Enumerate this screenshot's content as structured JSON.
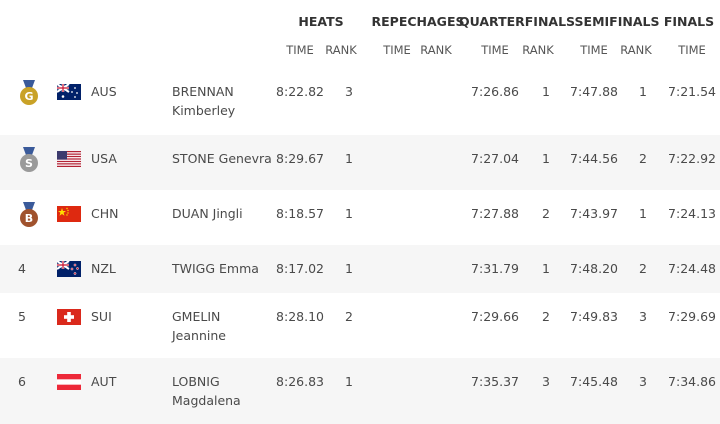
{
  "header": {
    "groups": [
      "HEATS",
      "REPECHAGES",
      "QUARTERFINALS",
      "SEMIFINALS",
      "FINALS"
    ],
    "subheaders": [
      "TIME",
      "RANK",
      "TIME",
      "RANK",
      "TIME",
      "RANK",
      "TIME",
      "RANK",
      "TIME"
    ]
  },
  "table": {
    "rows": [
      {
        "rank": "G",
        "country": "AUS",
        "name": [
          "BRENNAN",
          "Kimberley"
        ],
        "heats_time": "8:22.82",
        "heats_rank": 3,
        "quarterfinals_time": "7:26.86",
        "quarterfinals_rank": 1,
        "semifinals_time": "7:47.88",
        "semifinals_rank": 1,
        "finals_time": "7:21.54"
      },
      {
        "rank": "S",
        "country": "USA",
        "name": [
          "STONE Genevra"
        ],
        "heats_time": "8:29.67",
        "heats_rank": 1,
        "quarterfinals_time": "7:27.04",
        "quarterfinals_rank": 1,
        "semifinals_time": "7:44.56",
        "semifinals_rank": 2,
        "finals_time": "7:22.92"
      },
      {
        "rank": "B",
        "country": "CHN",
        "name": [
          "DUAN Jingli"
        ],
        "heats_time": "8:18.57",
        "heats_rank": 1,
        "quarterfinals_time": "7:27.88",
        "quarterfinals_rank": 2,
        "semifinals_time": "7:43.97",
        "semifinals_rank": 1,
        "finals_time": "7:24.13"
      },
      {
        "rank": 4,
        "country": "NZL",
        "name": [
          "TWIGG Emma"
        ],
        "heats_time": "8:17.02",
        "heats_rank": 1,
        "quarterfinals_time": "7:31.79",
        "quarterfinals_rank": 1,
        "semifinals_time": "7:48.20",
        "semifinals_rank": 2,
        "finals_time": "7:24.48"
      },
      {
        "rank": 5,
        "country": "SUI",
        "name": [
          "GMELIN",
          "Jeannine"
        ],
        "heats_time": "8:28.10",
        "heats_rank": 2,
        "quarterfinals_time": "7:29.66",
        "quarterfinals_rank": 2,
        "semifinals_time": "7:49.83",
        "semifinals_rank": 3,
        "finals_time": "7:29.69"
      },
      {
        "rank": 6,
        "country": "AUT",
        "name": [
          "LOBNIG",
          "Magdalena"
        ],
        "heats_time": "8:26.83",
        "heats_rank": 1,
        "quarterfinals_time": "7:35.37",
        "quarterfinals_rank": 3,
        "semifinals_time": "7:45.48",
        "semifinals_rank": 3,
        "finals_time": "7:34.86"
      }
    ]
  }
}
